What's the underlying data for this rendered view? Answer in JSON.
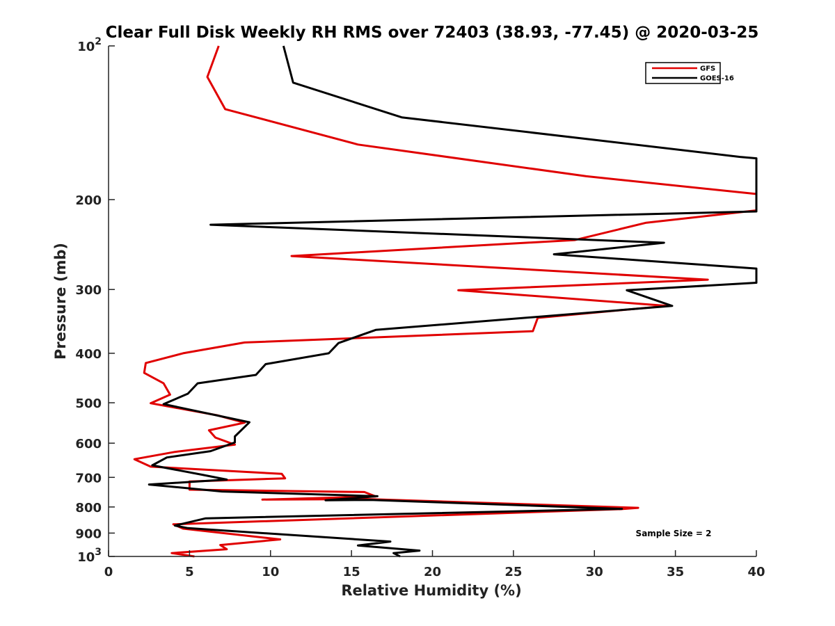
{
  "chart_data": {
    "type": "line",
    "title": "Clear Full Disk Weekly RH RMS over 72403 (38.93, -77.45) @ 2020-03-25",
    "xlabel": "Relative Humidity (%)",
    "ylabel": "Pressure (mb)",
    "xlim": [
      0,
      40
    ],
    "ylim": [
      100,
      1000
    ],
    "y_scale": "log",
    "y_reversed": true,
    "grid": false,
    "legend_position": "top-right",
    "x_ticks": [
      "0",
      "5",
      "10",
      "15",
      "20",
      "25",
      "30",
      "35",
      "40"
    ],
    "y_ticks": [
      {
        "value": 100,
        "base": "10",
        "exp": "2"
      },
      {
        "value": 200,
        "label": "200"
      },
      {
        "value": 300,
        "label": "300"
      },
      {
        "value": 400,
        "label": "400"
      },
      {
        "value": 500,
        "label": "500"
      },
      {
        "value": 600,
        "label": "600"
      },
      {
        "value": 700,
        "label": "700"
      },
      {
        "value": 800,
        "label": "800"
      },
      {
        "value": 900,
        "label": "900"
      },
      {
        "value": 1000,
        "base": "10",
        "exp": "3"
      }
    ],
    "annotation": "Sample Size = 2",
    "series": [
      {
        "name": "GFS",
        "color": "#e00000",
        "points": [
          [
            6.8,
            100
          ],
          [
            6.1,
            115
          ],
          [
            7.2,
            133
          ],
          [
            15.4,
            156
          ],
          [
            29.5,
            180
          ],
          [
            40.0,
            195
          ],
          [
            40.0,
            210
          ],
          [
            33.2,
            222
          ],
          [
            28.8,
            240
          ],
          [
            11.3,
            258
          ],
          [
            37.0,
            287
          ],
          [
            21.6,
            301
          ],
          [
            34.5,
            323
          ],
          [
            26.5,
            341
          ],
          [
            26.2,
            362
          ],
          [
            8.4,
            381
          ],
          [
            4.6,
            400
          ],
          [
            2.3,
            418
          ],
          [
            2.2,
            437
          ],
          [
            3.4,
            458
          ],
          [
            3.8,
            482
          ],
          [
            2.6,
            501
          ],
          [
            6.7,
            529
          ],
          [
            8.4,
            547
          ],
          [
            6.2,
            566
          ],
          [
            6.6,
            585
          ],
          [
            7.8,
            604
          ],
          [
            4.1,
            624
          ],
          [
            1.6,
            645
          ],
          [
            2.6,
            667
          ],
          [
            10.7,
            689
          ],
          [
            10.9,
            703
          ],
          [
            5.0,
            713
          ],
          [
            5.0,
            740
          ],
          [
            15.8,
            748
          ],
          [
            16.5,
            763
          ],
          [
            9.5,
            774
          ],
          [
            15.9,
            772
          ],
          [
            32.7,
            803
          ],
          [
            31.6,
            808
          ],
          [
            4.0,
            865
          ],
          [
            4.6,
            882
          ],
          [
            10.6,
            926
          ],
          [
            6.9,
            950
          ],
          [
            7.3,
            968
          ],
          [
            3.9,
            985
          ],
          [
            5.3,
            1000
          ]
        ]
      },
      {
        "name": "GOES-16",
        "color": "#000000",
        "points": [
          [
            10.8,
            100
          ],
          [
            11.4,
            118
          ],
          [
            18.1,
            138
          ],
          [
            39.0,
            165
          ],
          [
            40.0,
            166
          ],
          [
            40.0,
            211
          ],
          [
            6.3,
            224
          ],
          [
            34.3,
            243
          ],
          [
            27.5,
            256
          ],
          [
            40.0,
            273
          ],
          [
            40.0,
            291
          ],
          [
            32.0,
            301
          ],
          [
            34.8,
            323
          ],
          [
            16.5,
            360
          ],
          [
            14.2,
            382
          ],
          [
            13.6,
            400
          ],
          [
            9.7,
            420
          ],
          [
            9.1,
            441
          ],
          [
            5.5,
            458
          ],
          [
            4.9,
            480
          ],
          [
            3.4,
            503
          ],
          [
            8.7,
            546
          ],
          [
            7.8,
            582
          ],
          [
            7.8,
            598
          ],
          [
            6.3,
            622
          ],
          [
            3.6,
            640
          ],
          [
            2.7,
            663
          ],
          [
            5.8,
            692
          ],
          [
            7.3,
            707
          ],
          [
            2.5,
            723
          ],
          [
            7.0,
            746
          ],
          [
            16.6,
            762
          ],
          [
            13.4,
            776
          ],
          [
            16.2,
            775
          ],
          [
            31.7,
            807
          ],
          [
            6.0,
            842
          ],
          [
            4.1,
            870
          ],
          [
            4.9,
            880
          ],
          [
            17.4,
            935
          ],
          [
            15.4,
            952
          ],
          [
            19.2,
            974
          ],
          [
            17.6,
            985
          ],
          [
            18.0,
            1000
          ]
        ]
      }
    ]
  }
}
